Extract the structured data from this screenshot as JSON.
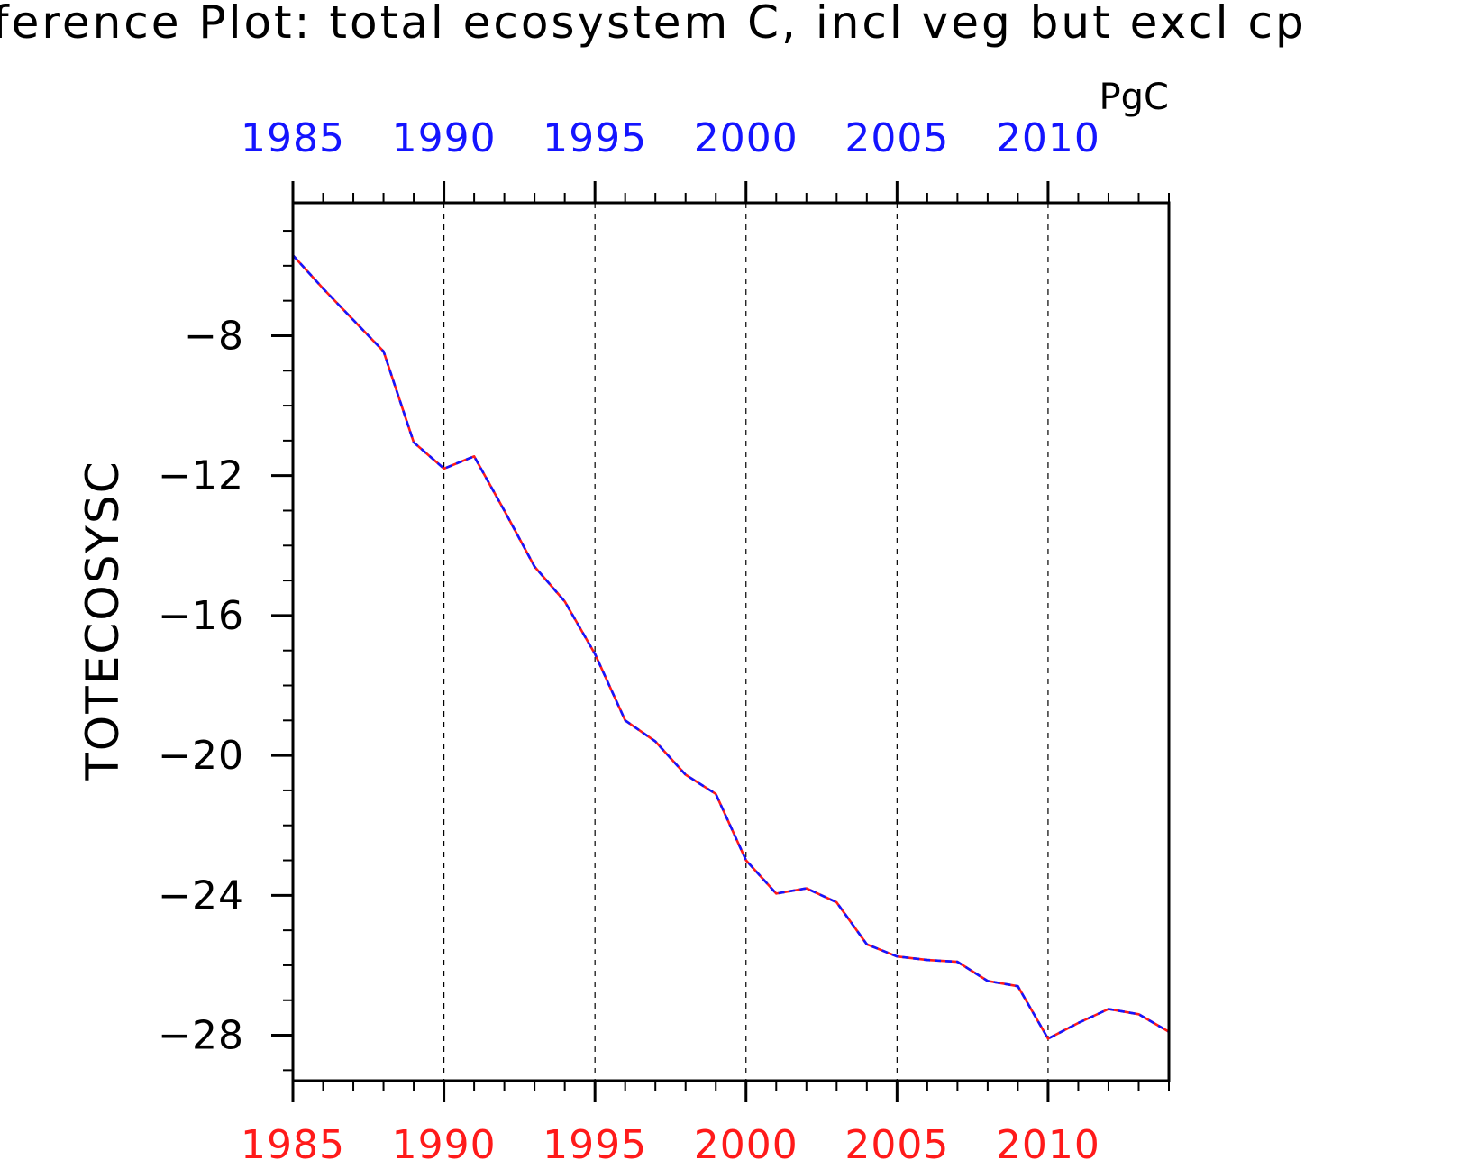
{
  "chart_data": {
    "type": "line",
    "title": "ference Plot: total ecosystem C, incl veg but excl cp",
    "units": "PgC",
    "ylabel": "TOTECOSYSC",
    "xlabel": "",
    "xlim": [
      1985,
      2014
    ],
    "ylim": [
      -29.3,
      -4.2
    ],
    "x_ticks": [
      1985,
      1990,
      1995,
      2000,
      2005,
      2010
    ],
    "y_ticks": [
      -8,
      -12,
      -16,
      -20,
      -24,
      -28
    ],
    "y_tick_labels": [
      "−8",
      "−12",
      "−16",
      "−20",
      "−24",
      "−28"
    ],
    "x_minor_step": 1,
    "y_minor_step": 1,
    "grid": "vertical dashed at major x ticks",
    "top_axis_color": "#1414ff",
    "bottom_axis_color": "#ff1a1a",
    "x": [
      1985,
      1986,
      1987,
      1988,
      1989,
      1990,
      1991,
      1992,
      1993,
      1994,
      1995,
      1996,
      1997,
      1998,
      1999,
      2000,
      2001,
      2002,
      2003,
      2004,
      2005,
      2006,
      2007,
      2008,
      2009,
      2010,
      2011,
      2012,
      2013,
      2014
    ],
    "series": [
      {
        "color": "#ff1a1a",
        "style": "solid",
        "values": [
          -5.7,
          -6.65,
          -7.55,
          -8.45,
          -11.05,
          -11.8,
          -11.45,
          -13.0,
          -14.6,
          -15.6,
          -17.1,
          -19.0,
          -19.6,
          -20.55,
          -21.1,
          -23.0,
          -23.95,
          -23.8,
          -24.2,
          -25.4,
          -25.75,
          -25.85,
          -25.9,
          -26.45,
          -26.6,
          -28.1,
          -27.65,
          -27.25,
          -27.4,
          -27.9
        ]
      },
      {
        "color": "#1414ff",
        "style": "dashed",
        "values": [
          -5.7,
          -6.65,
          -7.55,
          -8.45,
          -11.05,
          -11.8,
          -11.45,
          -13.0,
          -14.6,
          -15.6,
          -17.1,
          -19.0,
          -19.6,
          -20.55,
          -21.1,
          -23.0,
          -23.95,
          -23.8,
          -24.2,
          -25.4,
          -25.75,
          -25.85,
          -25.9,
          -26.45,
          -26.6,
          -28.1,
          -27.65,
          -27.25,
          -27.4,
          -27.9
        ]
      }
    ]
  }
}
